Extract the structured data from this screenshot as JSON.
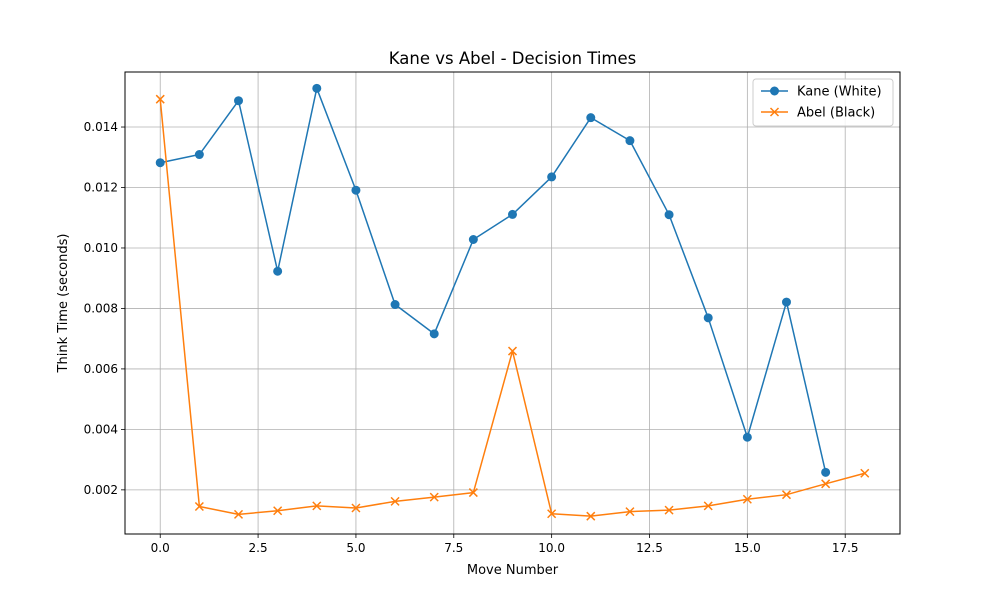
{
  "chart_data": {
    "type": "line",
    "title": "Kane vs Abel - Decision Times",
    "xlabel": "Move Number",
    "ylabel": "Think Time (seconds)",
    "xlim": [
      -0.9,
      18.9
    ],
    "ylim": [
      0.00054,
      0.01582
    ],
    "xticks": [
      0.0,
      2.5,
      5.0,
      7.5,
      10.0,
      12.5,
      15.0,
      17.5
    ],
    "xtick_labels": [
      "0.0",
      "2.5",
      "5.0",
      "7.5",
      "10.0",
      "12.5",
      "15.0",
      "17.5"
    ],
    "yticks": [
      0.002,
      0.004,
      0.006,
      0.008,
      0.01,
      0.012,
      0.014
    ],
    "ytick_labels": [
      "0.002",
      "0.004",
      "0.006",
      "0.008",
      "0.010",
      "0.012",
      "0.014"
    ],
    "grid": true,
    "legend_position": "top-right",
    "series": [
      {
        "name": "Kane (White)",
        "color": "#1f77b4",
        "marker": "circle",
        "x": [
          0,
          1,
          2,
          3,
          4,
          5,
          6,
          7,
          8,
          9,
          10,
          11,
          12,
          13,
          14,
          15,
          16,
          17
        ],
        "values": [
          0.01282,
          0.01309,
          0.01487,
          0.00923,
          0.01528,
          0.01191,
          0.00813,
          0.00716,
          0.01028,
          0.01111,
          0.01235,
          0.01431,
          0.01355,
          0.0111,
          0.00769,
          0.00374,
          0.00821,
          0.00258
        ]
      },
      {
        "name": "Abel (Black)",
        "color": "#ff7f0e",
        "marker": "x",
        "x": [
          0,
          1,
          2,
          3,
          4,
          5,
          6,
          7,
          8,
          9,
          10,
          11,
          12,
          13,
          14,
          15,
          16,
          17,
          18
        ],
        "values": [
          0.01492,
          0.00145,
          0.00119,
          0.00131,
          0.00147,
          0.0014,
          0.00162,
          0.00176,
          0.00191,
          0.00659,
          0.00121,
          0.00113,
          0.00128,
          0.00133,
          0.00147,
          0.00169,
          0.00184,
          0.0022,
          0.00255
        ]
      }
    ]
  }
}
